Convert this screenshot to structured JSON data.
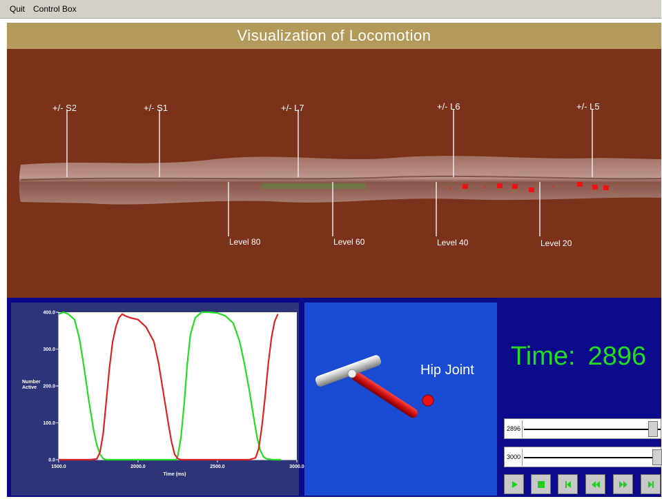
{
  "menu": {
    "items": [
      {
        "label": "Quit"
      },
      {
        "label": "Control Box"
      }
    ]
  },
  "title": "Visualization of Locomotion",
  "scene": {
    "segment_labels": [
      "+/- S2",
      "+/- S1",
      "+/- L7",
      "+/- L6",
      "+/- L5"
    ],
    "level_labels": [
      "Level 80",
      "Level 60",
      "Level 40",
      "Level 20"
    ]
  },
  "colors": {
    "title_bar": "#b49a5a",
    "scene_background": "#7b321a",
    "panel_background": "#0a0a8a",
    "plot_background": "#2e3478",
    "hip_panel": "#1a4bd3",
    "extensor_series": "#22dd22",
    "flexor_series": "#dd2222",
    "time_text": "#22dd22"
  },
  "chart_data": {
    "type": "line",
    "xlabel": "Time (ms)",
    "ylabel": "Number Active",
    "xlim": [
      1500,
      3000
    ],
    "ylim": [
      0,
      400
    ],
    "x_ticks": [
      "1500.0",
      "2000.0",
      "2500.0",
      "3000.0"
    ],
    "y_ticks": [
      "0.0",
      "100.0",
      "200.0",
      "300.0",
      "400.0"
    ],
    "series": [
      {
        "color": "#22dd22",
        "x": [
          1500,
          1530,
          1560,
          1600,
          1630,
          1660,
          1690,
          1720,
          1740,
          1760,
          1780,
          1800,
          1850,
          1900,
          2000,
          2100,
          2200,
          2240,
          2250,
          2270,
          2290,
          2310,
          2330,
          2360,
          2400,
          2450,
          2500,
          2550,
          2600,
          2640,
          2670,
          2700,
          2730,
          2750,
          2770,
          2790,
          2810,
          2850,
          2900
        ],
        "y": [
          395,
          400,
          395,
          380,
          330,
          250,
          160,
          80,
          40,
          15,
          3,
          0,
          0,
          0,
          0,
          0,
          0,
          0,
          10,
          60,
          150,
          260,
          340,
          385,
          400,
          400,
          398,
          390,
          370,
          320,
          260,
          190,
          110,
          60,
          25,
          8,
          2,
          0,
          0
        ]
      },
      {
        "color": "#dd2222",
        "x": [
          1500,
          1600,
          1700,
          1740,
          1760,
          1780,
          1800,
          1820,
          1840,
          1860,
          1880,
          1900,
          1920,
          1950,
          2000,
          2050,
          2100,
          2130,
          2160,
          2190,
          2210,
          2230,
          2250,
          2270,
          2300,
          2400,
          2500,
          2600,
          2700,
          2740,
          2760,
          2780,
          2800,
          2820,
          2840,
          2860,
          2880
        ],
        "y": [
          0,
          0,
          0,
          2,
          20,
          70,
          160,
          250,
          320,
          360,
          385,
          395,
          390,
          385,
          380,
          360,
          320,
          260,
          180,
          100,
          50,
          15,
          3,
          0,
          0,
          0,
          0,
          0,
          0,
          5,
          30,
          90,
          170,
          260,
          330,
          375,
          395
        ]
      }
    ]
  },
  "hip": {
    "label": "Hip Joint"
  },
  "time": {
    "label": "Time:",
    "value": "2896"
  },
  "sliders": [
    {
      "value": "2896",
      "fraction": 0.966
    },
    {
      "value": "3000",
      "fraction": 1.0
    }
  ],
  "controls": [
    {
      "icon": "play-icon"
    },
    {
      "icon": "stop-icon"
    },
    {
      "icon": "step-back-icon"
    },
    {
      "icon": "rewind-icon"
    },
    {
      "icon": "fast-forward-icon"
    },
    {
      "icon": "step-forward-icon"
    }
  ]
}
